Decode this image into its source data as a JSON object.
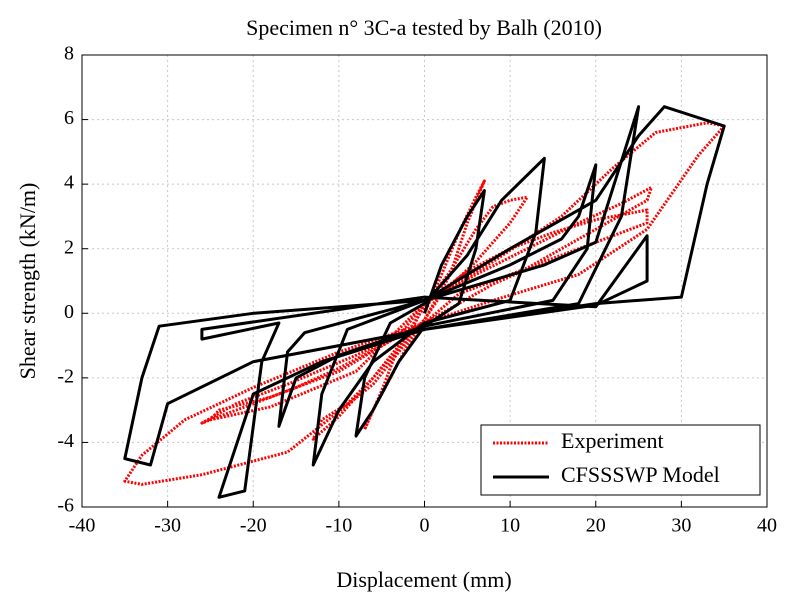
{
  "chart_data": {
    "type": "line",
    "title": "Specimen n° 3C-a tested by Balh (2010)",
    "x_label": "Displacement (mm)",
    "y_label": "Shear strength (kN/m)",
    "xlim": [
      -40,
      40
    ],
    "ylim": [
      -6,
      8
    ],
    "xticks": [
      -40,
      -30,
      -20,
      -10,
      0,
      10,
      20,
      30,
      40
    ],
    "yticks": [
      -6,
      -4,
      -2,
      0,
      2,
      4,
      6,
      8
    ],
    "grid": true,
    "legend": "lower right",
    "series": [
      {
        "name": "Experiment",
        "color": "#ff0000",
        "line_style": "dotted",
        "x": [
          0,
          2,
          4,
          6,
          7,
          5,
          3,
          0,
          -2,
          -4,
          -6,
          -7,
          -5,
          -3,
          0,
          3,
          6,
          8,
          10,
          12,
          10,
          6,
          2,
          0,
          -3,
          -6,
          -9,
          -12,
          -13,
          -10,
          -6,
          -2,
          0,
          5,
          10,
          15,
          20,
          26,
          26,
          20,
          14,
          8,
          0,
          -5,
          -10,
          -15,
          -20,
          -25,
          -24,
          -18,
          -10,
          -3,
          0,
          6,
          12,
          18,
          23,
          26.5,
          26,
          20,
          12,
          4,
          0,
          -8,
          -16,
          -22,
          -26,
          -25,
          -18,
          -8,
          0,
          8,
          16,
          22,
          27,
          33,
          35,
          32,
          26,
          18,
          8,
          0,
          -10,
          -20,
          -28,
          -33,
          -35,
          -33,
          -26,
          -16,
          -6,
          0
        ],
        "values": [
          0,
          1.2,
          2.5,
          3.6,
          4.1,
          2.8,
          1.2,
          -0.2,
          -1.0,
          -2.0,
          -3.0,
          -3.6,
          -2.4,
          -1.0,
          0.2,
          1.3,
          2.6,
          3.3,
          3.5,
          3.6,
          2.8,
          1.6,
          0.6,
          -0.2,
          -1.0,
          -2.0,
          -2.8,
          -3.3,
          -3.9,
          -3.2,
          -2.0,
          -0.8,
          0.3,
          1.3,
          2.0,
          2.5,
          2.9,
          3.2,
          2.8,
          2.2,
          1.6,
          0.9,
          -0.3,
          -1.0,
          -1.7,
          -2.3,
          -2.8,
          -3.3,
          -3.0,
          -2.6,
          -1.8,
          -0.7,
          0.3,
          1.2,
          2.0,
          2.8,
          3.4,
          3.9,
          3.5,
          2.6,
          1.4,
          0.6,
          -0.3,
          -1.3,
          -2.2,
          -2.8,
          -3.4,
          -3.3,
          -2.9,
          -1.8,
          0.3,
          1.6,
          3.0,
          4.5,
          5.6,
          5.9,
          5.8,
          4.9,
          2.6,
          1.2,
          0.4,
          -0.3,
          -1.2,
          -2.3,
          -3.3,
          -4.4,
          -5.2,
          -5.3,
          -5.0,
          -4.3,
          -2.2,
          -0.2
        ]
      },
      {
        "name": "CFSSSWP Model",
        "color": "#000000",
        "line_style": "solid",
        "x": [
          0,
          2,
          5,
          7,
          6,
          4,
          0,
          -3,
          -6,
          -8,
          -7,
          -4,
          0,
          5,
          9,
          14,
          13,
          10,
          0,
          -6,
          -10,
          -13,
          -12,
          -9,
          0,
          10,
          16,
          18,
          20,
          19,
          15,
          0,
          -10,
          -15,
          -17,
          -16,
          -14,
          0,
          14,
          20,
          25,
          23,
          18,
          0,
          -12,
          -20,
          -24,
          -21,
          -19,
          -17,
          -26,
          -26,
          0,
          20,
          26,
          26,
          20,
          0,
          -10,
          -20,
          -30,
          -32,
          -35,
          -33,
          -31,
          -20,
          0,
          10,
          20,
          25,
          28,
          35,
          33,
          30,
          20,
          0
        ],
        "values": [
          0,
          1.5,
          3.0,
          3.8,
          2.0,
          0.3,
          -0.4,
          -1.5,
          -3.0,
          -3.8,
          -2.0,
          -0.3,
          0.3,
          1.8,
          3.5,
          4.8,
          2.5,
          0.4,
          -0.3,
          -1.5,
          -3.0,
          -4.7,
          -2.5,
          -0.5,
          0.4,
          1.5,
          2.3,
          3.0,
          4.6,
          2.0,
          0.4,
          -0.4,
          -1.3,
          -2.0,
          -3.5,
          -1.2,
          -0.6,
          0.4,
          1.5,
          2.2,
          6.4,
          3.0,
          0.3,
          -0.5,
          -1.5,
          -2.5,
          -5.7,
          -5.5,
          -1.5,
          -0.3,
          -0.8,
          -0.5,
          0.5,
          0.2,
          2.4,
          1.0,
          0.25,
          -0.5,
          -1.0,
          -1.5,
          -2.8,
          -4.7,
          -4.5,
          -2.0,
          -0.4,
          0,
          0.4,
          2.0,
          3.5,
          5.5,
          6.4,
          5.8,
          4.0,
          0.5,
          0.3,
          -0.5
        ]
      }
    ]
  }
}
